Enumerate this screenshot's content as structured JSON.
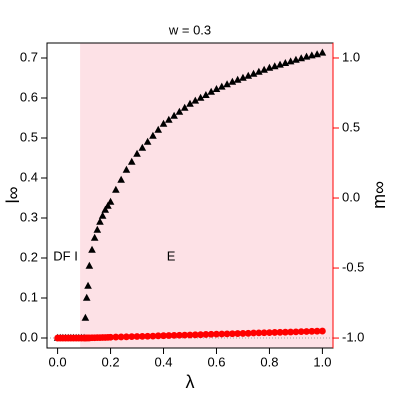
{
  "chart_data": {
    "type": "scatter",
    "title": "w = 0.3",
    "xlabel": "λ",
    "ylabel": "l∞",
    "y2label": "m∞",
    "x": [
      0,
      0.01,
      0.02,
      0.03,
      0.04,
      0.05,
      0.06,
      0.07,
      0.08,
      0.09,
      0.1,
      0.105,
      0.11,
      0.115,
      0.12,
      0.13,
      0.14,
      0.15,
      0.16,
      0.17,
      0.18,
      0.19,
      0.2,
      0.22,
      0.24,
      0.26,
      0.28,
      0.3,
      0.32,
      0.34,
      0.36,
      0.38,
      0.4,
      0.42,
      0.44,
      0.46,
      0.48,
      0.5,
      0.52,
      0.54,
      0.56,
      0.58,
      0.6,
      0.62,
      0.64,
      0.66,
      0.68,
      0.7,
      0.72,
      0.74,
      0.76,
      0.78,
      0.8,
      0.82,
      0.84,
      0.86,
      0.88,
      0.9,
      0.92,
      0.94,
      0.96,
      0.98,
      1.0
    ],
    "series": [
      {
        "color": "#000000",
        "marker": "triangle",
        "values": [
          0,
          0,
          0,
          0,
          0,
          0,
          0,
          0,
          0,
          0,
          0,
          0.05,
          0.1,
          0.13,
          0.18,
          0.22,
          0.25,
          0.27,
          0.29,
          0.305,
          0.32,
          0.33,
          0.34,
          0.37,
          0.395,
          0.42,
          0.44,
          0.46,
          0.475,
          0.49,
          0.505,
          0.52,
          0.535,
          0.545,
          0.555,
          0.565,
          0.575,
          0.585,
          0.593,
          0.6,
          0.607,
          0.615,
          0.622,
          0.628,
          0.634,
          0.64,
          0.645,
          0.65,
          0.655,
          0.66,
          0.665,
          0.67,
          0.675,
          0.679,
          0.683,
          0.687,
          0.691,
          0.695,
          0.699,
          0.703,
          0.706,
          0.709,
          0.713
        ]
      },
      {
        "color": "#ff0000",
        "marker": "circle",
        "axis": "y2",
        "values": [
          -1,
          -1,
          -1,
          -1,
          -1,
          -1,
          -1,
          -1,
          -1,
          -1,
          -1,
          -1,
          -0.999,
          -0.999,
          -0.999,
          -0.998,
          -0.998,
          -0.997,
          -0.997,
          -0.996,
          -0.996,
          -0.995,
          -0.994,
          -0.993,
          -0.992,
          -0.991,
          -0.99,
          -0.989,
          -0.988,
          -0.987,
          -0.986,
          -0.984,
          -0.983,
          -0.982,
          -0.981,
          -0.98,
          -0.979,
          -0.978,
          -0.977,
          -0.976,
          -0.974,
          -0.973,
          -0.972,
          -0.971,
          -0.97,
          -0.969,
          -0.968,
          -0.967,
          -0.966,
          -0.964,
          -0.963,
          -0.962,
          -0.961,
          -0.96,
          -0.959,
          -0.958,
          -0.957,
          -0.956,
          -0.954,
          -0.953,
          -0.952,
          -0.951,
          -0.95
        ]
      }
    ],
    "regions": [
      {
        "label": "DF I",
        "start": -0.04,
        "end": 0.085,
        "color": "#ffffff"
      },
      {
        "label": "E",
        "start": 0.085,
        "end": 1.04,
        "color": "#fde1e6"
      }
    ],
    "xlim": [
      -0.04,
      1.04
    ],
    "ylim": [
      -0.025,
      0.7375
    ],
    "y2lim": [
      -1.071,
      1.107
    ],
    "xticks": [
      {
        "value": 0,
        "label": "0.0"
      },
      0.2,
      0.4,
      0.6,
      0.8,
      {
        "value": 1,
        "label": "1.0"
      }
    ],
    "yticks": [
      {
        "value": 0,
        "label": "0.0"
      },
      0.1,
      0.2,
      0.3,
      0.4,
      0.5,
      0.6,
      0.7
    ],
    "y2ticks": [
      {
        "value": -1,
        "label": "-1.0"
      },
      {
        "value": -0.5,
        "label": "-0.5"
      },
      {
        "value": 0,
        "label": "0.0"
      },
      0.5,
      {
        "value": 1,
        "label": "1.0"
      }
    ],
    "y2color": "#ff0000"
  }
}
